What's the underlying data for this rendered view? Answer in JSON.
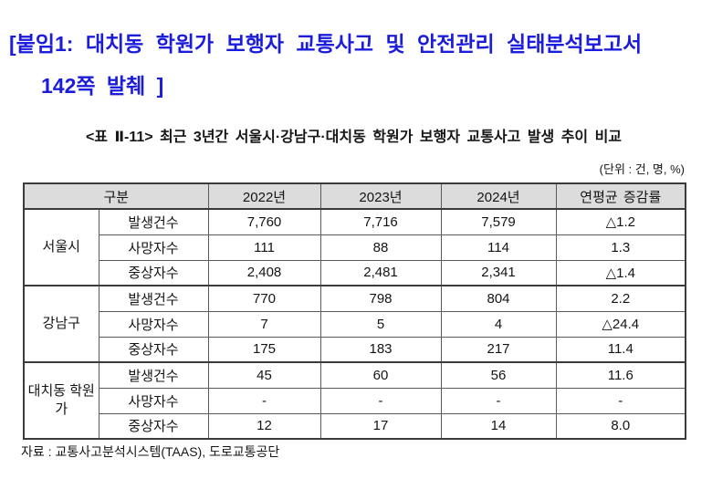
{
  "page": {
    "heading_line1": "[붙임1: 대치동 학원가 보행자 교통사고 및 안전관리 실태분석보고서",
    "heading_line2": "142쪽 발췌 ]",
    "table_caption": "<표 Ⅱ-11> 최근 3년간 서울시·강남구·대치동 학원가 보행자 교통사고 발생 추이 비교",
    "unit_note": "(단위 : 건, 명, %)",
    "source_note": "자료 : 교통사고분석시스템(TAAS), 도로교통공단"
  },
  "colors": {
    "heading_blue": "#1c1cdd",
    "header_fill": "#dcdcdc",
    "border_dark": "#3b3b3b",
    "border_inner": "#5a5a5a"
  },
  "chart_data": {
    "type": "table",
    "title": "<표 Ⅱ-11> 최근 3년간 서울시·강남구·대치동 학원가 보행자 교통사고 발생 추이 비교",
    "unit": "(단위 : 건, 명, %)",
    "columns": [
      "구분",
      "2022년",
      "2023년",
      "2024년",
      "연평균 증감률"
    ],
    "groups": [
      {
        "name": "서울시",
        "rows": [
          {
            "label": "발생건수",
            "values": [
              "7,760",
              "7,716",
              "7,579",
              "△1.2"
            ]
          },
          {
            "label": "사망자수",
            "values": [
              "111",
              "88",
              "114",
              "1.3"
            ]
          },
          {
            "label": "중상자수",
            "values": [
              "2,408",
              "2,481",
              "2,341",
              "△1.4"
            ]
          }
        ]
      },
      {
        "name": "강남구",
        "rows": [
          {
            "label": "발생건수",
            "values": [
              "770",
              "798",
              "804",
              "2.2"
            ]
          },
          {
            "label": "사망자수",
            "values": [
              "7",
              "5",
              "4",
              "△24.4"
            ]
          },
          {
            "label": "중상자수",
            "values": [
              "175",
              "183",
              "217",
              "11.4"
            ]
          }
        ]
      },
      {
        "name": "대치동 학원가",
        "rows": [
          {
            "label": "발생건수",
            "values": [
              "45",
              "60",
              "56",
              "11.6"
            ]
          },
          {
            "label": "사망자수",
            "values": [
              "-",
              "-",
              "-",
              "-"
            ]
          },
          {
            "label": "중상자수",
            "values": [
              "12",
              "17",
              "14",
              "8.0"
            ]
          }
        ]
      }
    ],
    "source": "자료 : 교통사고분석시스템(TAAS), 도로교통공단"
  }
}
